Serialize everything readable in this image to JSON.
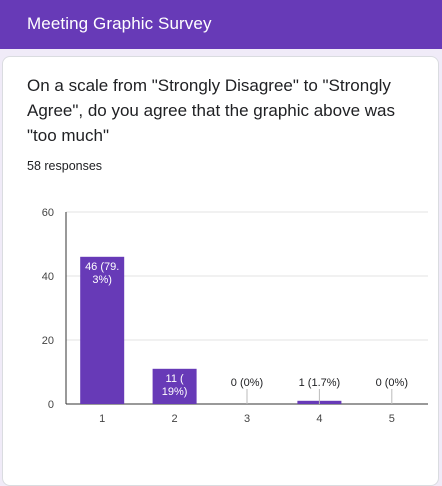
{
  "header": {
    "title": "Meeting Graphic Survey"
  },
  "question": {
    "text": "On a scale from \"Strongly Disagree\" to \"Strongly Agree\", do you agree that the graphic above was \"too much\""
  },
  "responses": {
    "text": "58 responses"
  },
  "colors": {
    "accent": "#673ab7",
    "bar": "#673ab7",
    "background": "#f0ebf8"
  },
  "chart_data": {
    "type": "bar",
    "categories": [
      "1",
      "2",
      "3",
      "4",
      "5"
    ],
    "values": [
      46,
      11,
      0,
      1,
      0
    ],
    "data_labels": [
      [
        "46 (79.",
        "3%)"
      ],
      [
        "11 (",
        "19%)"
      ],
      [
        "0 (0%)"
      ],
      [
        "1 (1.7%)"
      ],
      [
        "0 (0%)"
      ]
    ],
    "ylim": [
      0,
      60
    ],
    "yticks": [
      "0",
      "20",
      "40",
      "60"
    ],
    "grid": true,
    "title": "",
    "xlabel": "",
    "ylabel": ""
  }
}
